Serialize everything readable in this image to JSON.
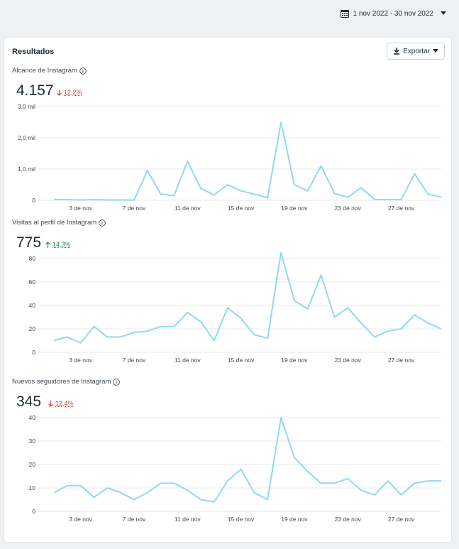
{
  "header": {
    "date_range": "1 nov 2022 - 30 nov 2022",
    "calendar_icon": "calendar-icon",
    "caret_icon": "caret-down-icon"
  },
  "card": {
    "title": "Resultados",
    "export_label": "Exportar",
    "export_icon": "download-icon"
  },
  "colors": {
    "line": "#8fd8f7",
    "grid": "#e6e9ec",
    "down": "#d53f2e",
    "up": "#1e8a4c"
  },
  "sections": [
    {
      "label": "Alcance de Instagram",
      "value": "4.157",
      "delta": "12,2%",
      "direction": "down"
    },
    {
      "label": "Visitas al perfil de Instagram",
      "value": "775",
      "delta": "14,3%",
      "direction": "up"
    },
    {
      "label": "Nuevos seguidores de Instagram",
      "value": "345",
      "delta": "12,4%",
      "direction": "down"
    }
  ],
  "chart_data": [
    {
      "type": "line",
      "title": "Alcance de Instagram",
      "x": [
        1,
        2,
        3,
        4,
        5,
        6,
        7,
        8,
        9,
        10,
        11,
        12,
        13,
        14,
        15,
        16,
        17,
        18,
        19,
        20,
        21,
        22,
        23,
        24,
        25,
        26,
        27,
        28,
        29,
        30
      ],
      "x_tick_labels": [
        "3 de nov",
        "7 de nov",
        "11 de nov",
        "15 de nov",
        "19 de nov",
        "23 de nov",
        "27 de nov"
      ],
      "x_tick_positions": [
        3,
        7,
        11,
        15,
        19,
        23,
        27
      ],
      "y_tick_labels": [
        "0",
        "1,0 mil",
        "2,0 mil",
        "3,0 mil"
      ],
      "y_tick_values": [
        0,
        1000,
        2000,
        3000
      ],
      "ylim": [
        0,
        3000
      ],
      "values": [
        30,
        20,
        10,
        20,
        10,
        10,
        10,
        950,
        200,
        150,
        1250,
        380,
        170,
        500,
        300,
        200,
        80,
        2500,
        500,
        300,
        1100,
        220,
        100,
        400,
        30,
        20,
        20,
        850,
        200,
        100
      ],
      "grid": true
    },
    {
      "type": "line",
      "title": "Visitas al perfil de Instagram",
      "x": [
        1,
        2,
        3,
        4,
        5,
        6,
        7,
        8,
        9,
        10,
        11,
        12,
        13,
        14,
        15,
        16,
        17,
        18,
        19,
        20,
        21,
        22,
        23,
        24,
        25,
        26,
        27,
        28,
        29,
        30
      ],
      "x_tick_labels": [
        "3 de nov",
        "7 de nov",
        "11 de nov",
        "15 de nov",
        "19 de nov",
        "23 de nov",
        "27 de nov"
      ],
      "x_tick_positions": [
        3,
        7,
        11,
        15,
        19,
        23,
        27
      ],
      "y_tick_labels": [
        "0",
        "20",
        "40",
        "60",
        "80"
      ],
      "y_tick_values": [
        0,
        20,
        40,
        60,
        80
      ],
      "ylim": [
        0,
        80
      ],
      "values": [
        10,
        13,
        8,
        22,
        13,
        13,
        17,
        18,
        22,
        22,
        34,
        26,
        10,
        38,
        29,
        15,
        12,
        85,
        44,
        37,
        66,
        30,
        38,
        25,
        13,
        18,
        20,
        32,
        25,
        20
      ],
      "grid": true
    },
    {
      "type": "line",
      "title": "Nuevos seguidores de Instagram",
      "x": [
        1,
        2,
        3,
        4,
        5,
        6,
        7,
        8,
        9,
        10,
        11,
        12,
        13,
        14,
        15,
        16,
        17,
        18,
        19,
        20,
        21,
        22,
        23,
        24,
        25,
        26,
        27,
        28,
        29,
        30
      ],
      "x_tick_labels": [
        "3 de nov",
        "7 de nov",
        "11 de nov",
        "15 de nov",
        "19 de nov",
        "23 de nov",
        "27 de nov"
      ],
      "x_tick_positions": [
        3,
        7,
        11,
        15,
        19,
        23,
        27
      ],
      "y_tick_labels": [
        "0",
        "10",
        "20",
        "30",
        "40"
      ],
      "y_tick_values": [
        0,
        10,
        20,
        30,
        40
      ],
      "ylim": [
        0,
        40
      ],
      "values": [
        8,
        11,
        11,
        6,
        10,
        8,
        5,
        8,
        12,
        12,
        9,
        5,
        4,
        13,
        18,
        8,
        5,
        40,
        23,
        17,
        12,
        12,
        14,
        9,
        7,
        13,
        7,
        12,
        13,
        13
      ],
      "grid": true
    }
  ]
}
